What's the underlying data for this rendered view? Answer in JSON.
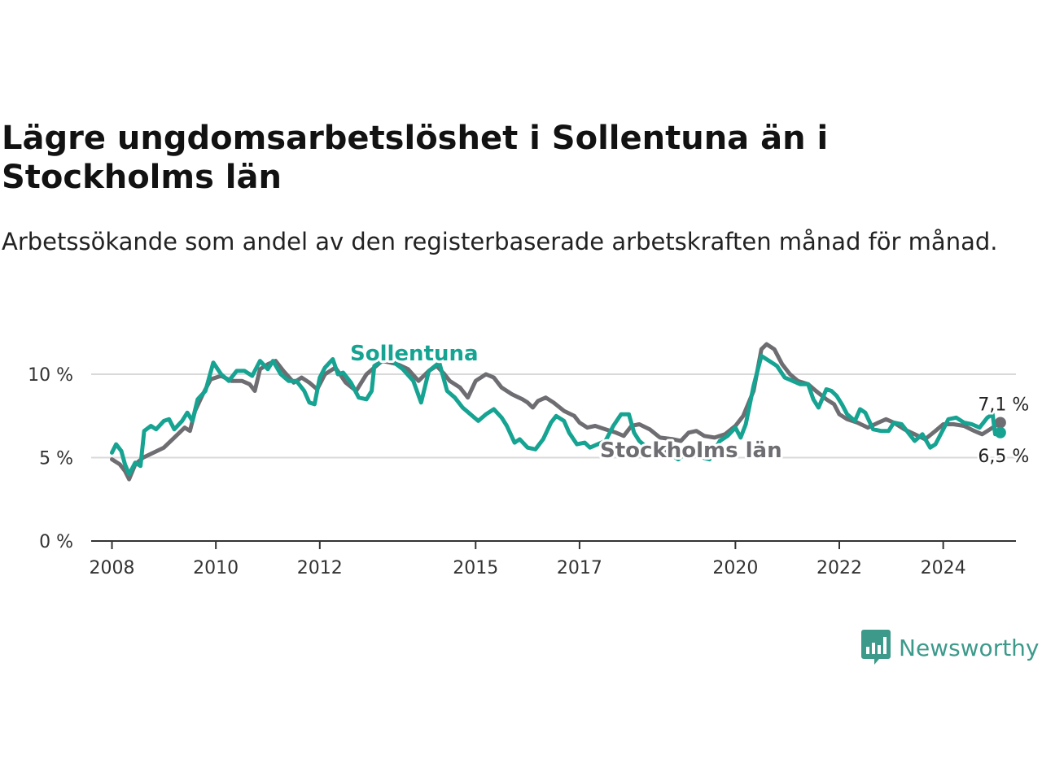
{
  "chart_data": {
    "type": "line",
    "title": "Lägre ungdomsarbetslöshet i Sollentuna än i Stockholms län",
    "subtitle": "Arbetssökande som andel av den registerbaserade arbetskraften månad för månad.",
    "ylim": [
      0,
      12
    ],
    "yticks": [
      {
        "value": 0,
        "label": "0 %"
      },
      {
        "value": 5,
        "label": "5 %"
      },
      {
        "value": 10,
        "label": "10 %"
      }
    ],
    "xlim": [
      2007.6,
      2025.4
    ],
    "xticks": [
      {
        "value": 2008,
        "label": "2008"
      },
      {
        "value": 2010,
        "label": "2010"
      },
      {
        "value": 2012,
        "label": "2012"
      },
      {
        "value": 2015,
        "label": "2015"
      },
      {
        "value": 2017,
        "label": "2017"
      },
      {
        "value": 2020,
        "label": "2020"
      },
      {
        "value": 2022,
        "label": "2022"
      },
      {
        "value": 2024,
        "label": "2024"
      }
    ],
    "grid": "horizontal",
    "series": [
      {
        "name": "Stockholms län",
        "color": "#6d6d72",
        "end_label": "7,1 %",
        "points": [
          [
            2008.0,
            4.9
          ],
          [
            2008.15,
            4.6
          ],
          [
            2008.25,
            4.2
          ],
          [
            2008.33,
            3.7
          ],
          [
            2008.45,
            4.6
          ],
          [
            2008.6,
            5.0
          ],
          [
            2008.8,
            5.3
          ],
          [
            2009.0,
            5.6
          ],
          [
            2009.2,
            6.2
          ],
          [
            2009.4,
            6.8
          ],
          [
            2009.5,
            6.6
          ],
          [
            2009.6,
            7.8
          ],
          [
            2009.75,
            8.8
          ],
          [
            2009.9,
            9.7
          ],
          [
            2010.1,
            9.9
          ],
          [
            2010.3,
            9.6
          ],
          [
            2010.5,
            9.6
          ],
          [
            2010.65,
            9.4
          ],
          [
            2010.75,
            9.0
          ],
          [
            2010.85,
            10.3
          ],
          [
            2011.0,
            10.6
          ],
          [
            2011.15,
            10.8
          ],
          [
            2011.3,
            10.2
          ],
          [
            2011.5,
            9.5
          ],
          [
            2011.65,
            9.8
          ],
          [
            2011.8,
            9.5
          ],
          [
            2011.95,
            9.1
          ],
          [
            2012.1,
            10.0
          ],
          [
            2012.3,
            10.4
          ],
          [
            2012.5,
            9.5
          ],
          [
            2012.7,
            9.0
          ],
          [
            2012.9,
            10.0
          ],
          [
            2013.2,
            10.8
          ],
          [
            2013.5,
            10.6
          ],
          [
            2013.7,
            10.3
          ],
          [
            2013.9,
            9.6
          ],
          [
            2014.1,
            10.2
          ],
          [
            2014.25,
            10.5
          ],
          [
            2014.4,
            10.0
          ],
          [
            2014.5,
            9.6
          ],
          [
            2014.7,
            9.2
          ],
          [
            2014.85,
            8.6
          ],
          [
            2015.0,
            9.6
          ],
          [
            2015.2,
            10.0
          ],
          [
            2015.35,
            9.8
          ],
          [
            2015.5,
            9.2
          ],
          [
            2015.7,
            8.8
          ],
          [
            2015.9,
            8.5
          ],
          [
            2016.0,
            8.3
          ],
          [
            2016.1,
            8.0
          ],
          [
            2016.2,
            8.4
          ],
          [
            2016.35,
            8.6
          ],
          [
            2016.5,
            8.3
          ],
          [
            2016.7,
            7.8
          ],
          [
            2016.9,
            7.5
          ],
          [
            2017.0,
            7.1
          ],
          [
            2017.15,
            6.8
          ],
          [
            2017.3,
            6.9
          ],
          [
            2017.5,
            6.7
          ],
          [
            2017.7,
            6.5
          ],
          [
            2017.85,
            6.3
          ],
          [
            2018.0,
            6.9
          ],
          [
            2018.15,
            7.0
          ],
          [
            2018.35,
            6.7
          ],
          [
            2018.55,
            6.2
          ],
          [
            2018.8,
            6.1
          ],
          [
            2018.95,
            6.0
          ],
          [
            2019.1,
            6.5
          ],
          [
            2019.25,
            6.6
          ],
          [
            2019.4,
            6.3
          ],
          [
            2019.6,
            6.2
          ],
          [
            2019.8,
            6.4
          ],
          [
            2020.0,
            6.9
          ],
          [
            2020.15,
            7.5
          ],
          [
            2020.35,
            9.0
          ],
          [
            2020.5,
            11.5
          ],
          [
            2020.6,
            11.8
          ],
          [
            2020.75,
            11.5
          ],
          [
            2020.9,
            10.6
          ],
          [
            2021.05,
            10.0
          ],
          [
            2021.2,
            9.6
          ],
          [
            2021.4,
            9.4
          ],
          [
            2021.55,
            9.0
          ],
          [
            2021.75,
            8.5
          ],
          [
            2021.9,
            8.2
          ],
          [
            2022.0,
            7.6
          ],
          [
            2022.15,
            7.3
          ],
          [
            2022.35,
            7.1
          ],
          [
            2022.55,
            6.8
          ],
          [
            2022.75,
            7.1
          ],
          [
            2022.9,
            7.3
          ],
          [
            2023.05,
            7.1
          ],
          [
            2023.25,
            6.7
          ],
          [
            2023.45,
            6.4
          ],
          [
            2023.65,
            6.1
          ],
          [
            2023.85,
            6.6
          ],
          [
            2024.0,
            7.0
          ],
          [
            2024.2,
            7.0
          ],
          [
            2024.4,
            6.9
          ],
          [
            2024.6,
            6.6
          ],
          [
            2024.75,
            6.4
          ],
          [
            2024.9,
            6.7
          ],
          [
            2025.1,
            7.1
          ]
        ]
      },
      {
        "name": "Sollentuna",
        "color": "#16a392",
        "end_label": "6,5 %",
        "points": [
          [
            2008.0,
            5.3
          ],
          [
            2008.08,
            5.8
          ],
          [
            2008.18,
            5.4
          ],
          [
            2008.25,
            4.6
          ],
          [
            2008.33,
            4.0
          ],
          [
            2008.45,
            4.7
          ],
          [
            2008.55,
            4.5
          ],
          [
            2008.62,
            6.6
          ],
          [
            2008.75,
            6.9
          ],
          [
            2008.85,
            6.7
          ],
          [
            2009.0,
            7.2
          ],
          [
            2009.1,
            7.3
          ],
          [
            2009.2,
            6.7
          ],
          [
            2009.35,
            7.2
          ],
          [
            2009.45,
            7.7
          ],
          [
            2009.55,
            7.2
          ],
          [
            2009.65,
            8.5
          ],
          [
            2009.8,
            9.0
          ],
          [
            2009.95,
            10.7
          ],
          [
            2010.1,
            10.0
          ],
          [
            2010.25,
            9.6
          ],
          [
            2010.4,
            10.2
          ],
          [
            2010.55,
            10.2
          ],
          [
            2010.7,
            9.9
          ],
          [
            2010.85,
            10.8
          ],
          [
            2011.0,
            10.3
          ],
          [
            2011.1,
            10.8
          ],
          [
            2011.25,
            10.0
          ],
          [
            2011.4,
            9.6
          ],
          [
            2011.55,
            9.6
          ],
          [
            2011.7,
            9.0
          ],
          [
            2011.8,
            8.3
          ],
          [
            2011.9,
            8.2
          ],
          [
            2012.0,
            9.8
          ],
          [
            2012.1,
            10.4
          ],
          [
            2012.25,
            10.9
          ],
          [
            2012.35,
            10.0
          ],
          [
            2012.45,
            10.1
          ],
          [
            2012.6,
            9.5
          ],
          [
            2012.75,
            8.6
          ],
          [
            2012.9,
            8.5
          ],
          [
            2013.0,
            9.0
          ],
          [
            2013.05,
            10.5
          ],
          [
            2013.3,
            11.0
          ],
          [
            2013.6,
            10.3
          ],
          [
            2013.8,
            9.6
          ],
          [
            2013.95,
            8.3
          ],
          [
            2014.1,
            10.2
          ],
          [
            2014.3,
            10.7
          ],
          [
            2014.45,
            9.0
          ],
          [
            2014.6,
            8.6
          ],
          [
            2014.75,
            8.0
          ],
          [
            2014.9,
            7.6
          ],
          [
            2015.05,
            7.2
          ],
          [
            2015.2,
            7.6
          ],
          [
            2015.35,
            7.9
          ],
          [
            2015.5,
            7.4
          ],
          [
            2015.6,
            6.9
          ],
          [
            2015.75,
            5.9
          ],
          [
            2015.85,
            6.1
          ],
          [
            2016.0,
            5.6
          ],
          [
            2016.15,
            5.5
          ],
          [
            2016.3,
            6.1
          ],
          [
            2016.45,
            7.1
          ],
          [
            2016.55,
            7.5
          ],
          [
            2016.7,
            7.2
          ],
          [
            2016.8,
            6.5
          ],
          [
            2016.95,
            5.8
          ],
          [
            2017.1,
            5.9
          ],
          [
            2017.2,
            5.6
          ],
          [
            2017.35,
            5.8
          ],
          [
            2017.5,
            6.0
          ],
          [
            2017.65,
            6.9
          ],
          [
            2017.8,
            7.6
          ],
          [
            2017.95,
            7.6
          ],
          [
            2018.05,
            6.5
          ],
          [
            2018.15,
            6.0
          ],
          [
            2018.3,
            5.6
          ],
          [
            2018.45,
            5.4
          ],
          [
            2018.6,
            5.5
          ],
          [
            2018.75,
            5.2
          ],
          [
            2018.9,
            4.9
          ],
          [
            2019.05,
            5.3
          ],
          [
            2019.25,
            5.1
          ],
          [
            2019.5,
            4.9
          ],
          [
            2019.7,
            6.0
          ],
          [
            2019.85,
            6.3
          ],
          [
            2020.0,
            6.8
          ],
          [
            2020.1,
            6.2
          ],
          [
            2020.2,
            7.0
          ],
          [
            2020.35,
            9.3
          ],
          [
            2020.5,
            11.1
          ],
          [
            2020.65,
            10.8
          ],
          [
            2020.8,
            10.5
          ],
          [
            2020.95,
            9.8
          ],
          [
            2021.1,
            9.6
          ],
          [
            2021.25,
            9.4
          ],
          [
            2021.4,
            9.4
          ],
          [
            2021.5,
            8.5
          ],
          [
            2021.6,
            8.0
          ],
          [
            2021.75,
            9.1
          ],
          [
            2021.85,
            9.0
          ],
          [
            2021.95,
            8.7
          ],
          [
            2022.05,
            8.2
          ],
          [
            2022.15,
            7.6
          ],
          [
            2022.3,
            7.2
          ],
          [
            2022.4,
            7.9
          ],
          [
            2022.5,
            7.7
          ],
          [
            2022.65,
            6.7
          ],
          [
            2022.8,
            6.6
          ],
          [
            2022.95,
            6.6
          ],
          [
            2023.05,
            7.1
          ],
          [
            2023.2,
            7.0
          ],
          [
            2023.35,
            6.4
          ],
          [
            2023.45,
            6.0
          ],
          [
            2023.6,
            6.4
          ],
          [
            2023.75,
            5.6
          ],
          [
            2023.85,
            5.8
          ],
          [
            2024.0,
            6.7
          ],
          [
            2024.1,
            7.3
          ],
          [
            2024.25,
            7.4
          ],
          [
            2024.4,
            7.1
          ],
          [
            2024.55,
            7.0
          ],
          [
            2024.7,
            6.8
          ],
          [
            2024.85,
            7.4
          ],
          [
            2024.95,
            7.6
          ],
          [
            2025.0,
            6.4
          ],
          [
            2025.1,
            6.5
          ]
        ]
      }
    ]
  },
  "brand": {
    "name": "Newsworthy",
    "color": "#3d9a8b"
  }
}
